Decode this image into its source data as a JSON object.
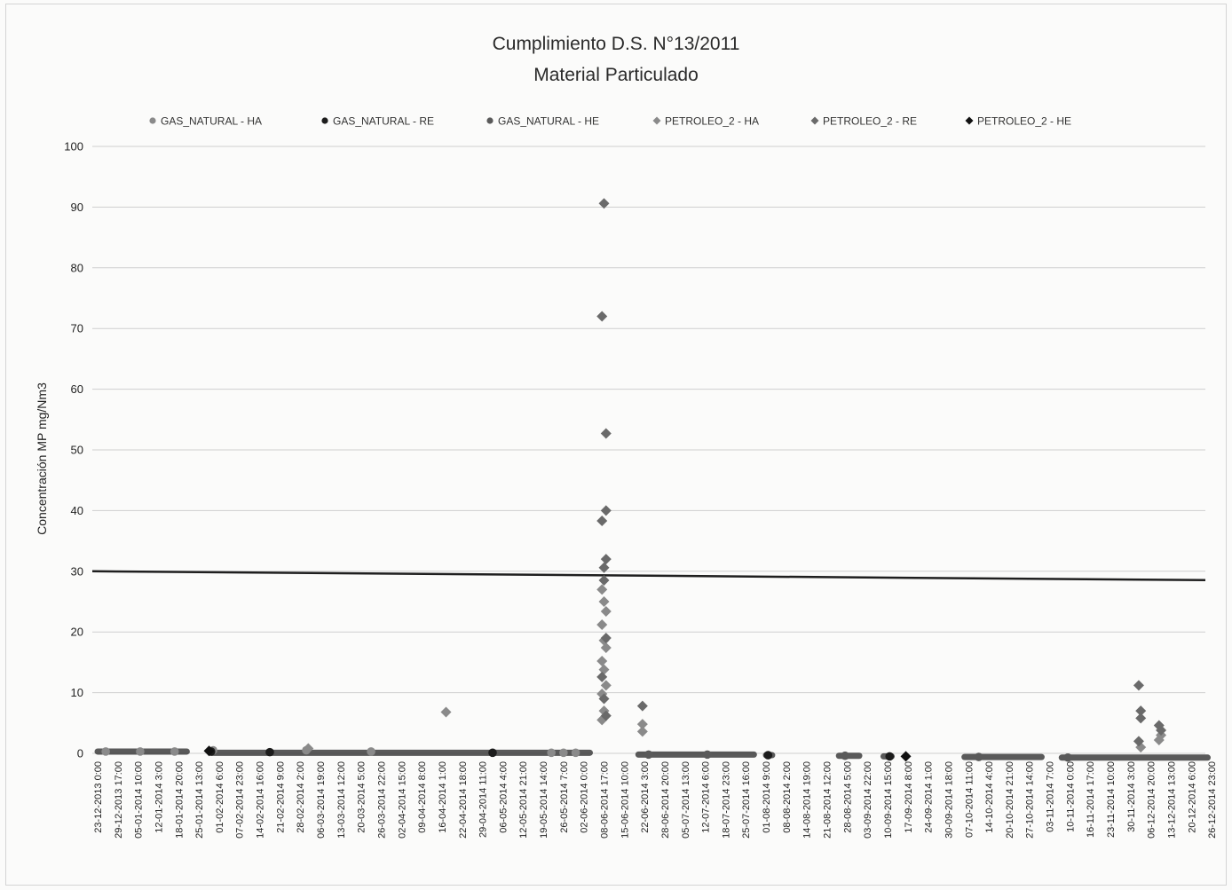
{
  "chart_data": {
    "type": "scatter",
    "title": "Cumplimiento D.S. N°13/2011",
    "subtitle": "Material Particulado",
    "xlabel": "",
    "ylabel": "Concentración MP mg/Nm3",
    "ylim": [
      0,
      100
    ],
    "y_ticks": [
      0,
      10,
      20,
      30,
      40,
      50,
      60,
      70,
      80,
      90,
      100
    ],
    "grid": true,
    "legend_position": "top",
    "limit_line": {
      "value": 30,
      "color": "#1f1f1f"
    },
    "categories": [
      "23-12-2013 0:00",
      "29-12-2013 17:00",
      "05-01-2014 10:00",
      "12-01-2014 3:00",
      "18-01-2014 20:00",
      "25-01-2014 13:00",
      "01-02-2014 6:00",
      "07-02-2014 23:00",
      "14-02-2014 16:00",
      "21-02-2014 9:00",
      "28-02-2014 2:00",
      "06-03-2014 19:00",
      "13-03-2014 12:00",
      "20-03-2014 5:00",
      "26-03-2014 22:00",
      "02-04-2014 15:00",
      "09-04-2014 8:00",
      "16-04-2014 1:00",
      "22-04-2014 18:00",
      "29-04-2014 11:00",
      "06-05-2014 4:00",
      "12-05-2014 21:00",
      "19-05-2014 14:00",
      "26-05-2014 7:00",
      "02-06-2014 0:00",
      "08-06-2014 17:00",
      "15-06-2014 10:00",
      "22-06-2014 3:00",
      "28-06-2014 20:00",
      "05-07-2014 13:00",
      "12-07-2014 6:00",
      "18-07-2014 23:00",
      "25-07-2014 16:00",
      "01-08-2014 9:00",
      "08-08-2014 2:00",
      "14-08-2014 19:00",
      "21-08-2014 12:00",
      "28-08-2014 5:00",
      "03-09-2014 22:00",
      "10-09-2014 15:00",
      "17-09-2014 8:00",
      "24-09-2014 1:00",
      "30-09-2014 18:00",
      "07-10-2014 11:00",
      "14-10-2014 4:00",
      "20-10-2014 21:00",
      "27-10-2014 14:00",
      "03-11-2014 7:00",
      "10-11-2014 0:00",
      "16-11-2014 17:00",
      "23-11-2014 10:00",
      "30-11-2014 3:00",
      "06-12-2014 20:00",
      "13-12-2014 13:00",
      "20-12-2014 6:00",
      "26-12-2014 23:00"
    ],
    "baseline_runs": [
      {
        "from": 0,
        "to": 4.4,
        "y": 0.3
      },
      {
        "from": 5.6,
        "to": 24.3,
        "y": 0.1
      },
      {
        "from": 26.7,
        "to": 32.4,
        "y": -0.2
      },
      {
        "from": 33.0,
        "to": 33.3,
        "y": -0.3
      },
      {
        "from": 36.6,
        "to": 37.6,
        "y": -0.4
      },
      {
        "from": 38.8,
        "to": 39.2,
        "y": -0.5
      },
      {
        "from": 42.8,
        "to": 46.6,
        "y": -0.6
      },
      {
        "from": 47.6,
        "to": 54.8,
        "y": -0.7
      }
    ],
    "series": [
      {
        "name": "GAS_NATURAL - HA",
        "marker": "circle",
        "color": "#8a8a8a",
        "points": [
          {
            "x": 0.4,
            "y": 0.3
          },
          {
            "x": 2.1,
            "y": 0.3
          },
          {
            "x": 3.8,
            "y": 0.3
          },
          {
            "x": 5.7,
            "y": 0.5
          },
          {
            "x": 10.3,
            "y": 0.5
          },
          {
            "x": 13.5,
            "y": 0.3
          },
          {
            "x": 22.4,
            "y": 0.1
          },
          {
            "x": 23.0,
            "y": 0.1
          },
          {
            "x": 23.6,
            "y": 0.1
          }
        ]
      },
      {
        "name": "GAS_NATURAL - RE",
        "marker": "circle",
        "color": "#1c1c1c",
        "points": [
          {
            "x": 5.6,
            "y": 0.3
          },
          {
            "x": 8.5,
            "y": 0.2
          },
          {
            "x": 19.5,
            "y": 0.1
          },
          {
            "x": 33.1,
            "y": -0.3
          },
          {
            "x": 39.1,
            "y": -0.5
          }
        ]
      },
      {
        "name": "GAS_NATURAL - HE",
        "marker": "circle",
        "color": "#5a5a5a",
        "points": [
          {
            "x": 27.2,
            "y": -0.2
          },
          {
            "x": 30.1,
            "y": -0.2
          },
          {
            "x": 36.9,
            "y": -0.4
          },
          {
            "x": 43.5,
            "y": -0.6
          },
          {
            "x": 47.9,
            "y": -0.7
          }
        ]
      },
      {
        "name": "PETROLEO_2 - HA",
        "marker": "diamond",
        "color": "#8a8a8a",
        "points": [
          {
            "x": 10.4,
            "y": 0.8
          },
          {
            "x": 17.2,
            "y": 6.8
          },
          {
            "x": 24.9,
            "y": 5.5
          },
          {
            "x": 25.0,
            "y": 7.0
          },
          {
            "x": 24.9,
            "y": 9.8
          },
          {
            "x": 25.1,
            "y": 11.2
          },
          {
            "x": 25.0,
            "y": 13.8
          },
          {
            "x": 24.9,
            "y": 15.2
          },
          {
            "x": 25.1,
            "y": 17.4
          },
          {
            "x": 25.0,
            "y": 18.6
          },
          {
            "x": 24.9,
            "y": 21.2
          },
          {
            "x": 25.1,
            "y": 23.4
          },
          {
            "x": 25.0,
            "y": 25.0
          },
          {
            "x": 24.9,
            "y": 27.0
          },
          {
            "x": 26.9,
            "y": 3.6
          },
          {
            "x": 26.9,
            "y": 4.8
          },
          {
            "x": 51.5,
            "y": 1.0
          },
          {
            "x": 52.4,
            "y": 2.2
          },
          {
            "x": 52.5,
            "y": 3.0
          }
        ]
      },
      {
        "name": "PETROLEO_2 - RE",
        "marker": "diamond",
        "color": "#6a6a6a",
        "points": [
          {
            "x": 25.0,
            "y": 90.6
          },
          {
            "x": 24.9,
            "y": 72.0
          },
          {
            "x": 25.1,
            "y": 52.7
          },
          {
            "x": 25.1,
            "y": 40.0
          },
          {
            "x": 24.9,
            "y": 38.3
          },
          {
            "x": 25.1,
            "y": 32.0
          },
          {
            "x": 25.0,
            "y": 30.6
          },
          {
            "x": 25.0,
            "y": 28.5
          },
          {
            "x": 25.1,
            "y": 19.0
          },
          {
            "x": 24.9,
            "y": 12.6
          },
          {
            "x": 25.0,
            "y": 9.0
          },
          {
            "x": 25.1,
            "y": 6.2
          },
          {
            "x": 26.9,
            "y": 7.8
          },
          {
            "x": 51.4,
            "y": 11.2
          },
          {
            "x": 51.5,
            "y": 7.0
          },
          {
            "x": 51.5,
            "y": 5.8
          },
          {
            "x": 51.4,
            "y": 2.0
          },
          {
            "x": 52.4,
            "y": 4.6
          },
          {
            "x": 52.5,
            "y": 3.8
          }
        ]
      },
      {
        "name": "PETROLEO_2 - HE",
        "marker": "diamond",
        "color": "#111111",
        "points": [
          {
            "x": 5.5,
            "y": 0.4
          },
          {
            "x": 39.9,
            "y": -0.5
          }
        ]
      }
    ]
  }
}
